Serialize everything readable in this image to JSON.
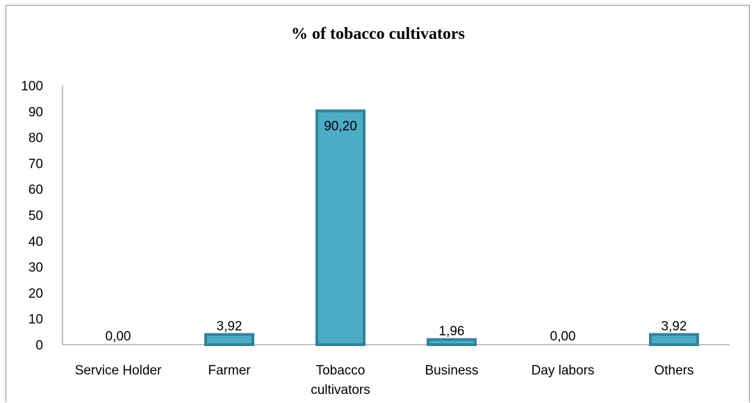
{
  "chart_data": {
    "type": "bar",
    "title": "% of tobacco cultivators",
    "categories": [
      "Service Holder",
      "Farmer",
      "Tobacco cultivators",
      "Business",
      "Day labors",
      "Others"
    ],
    "category_lines": [
      [
        "Service Holder"
      ],
      [
        "Farmer"
      ],
      [
        "Tobacco",
        "cultivators"
      ],
      [
        "Business"
      ],
      [
        "Day labors"
      ],
      [
        "Others"
      ]
    ],
    "values": [
      0.0,
      3.92,
      90.2,
      1.96,
      0.0,
      3.92
    ],
    "data_labels": [
      "0,00",
      "3,92",
      "90,20",
      "1,96",
      "0,00",
      "3,92"
    ],
    "ylim": [
      0,
      100
    ],
    "yticks": [
      0,
      10,
      20,
      30,
      40,
      50,
      60,
      70,
      80,
      90,
      100
    ],
    "grid": false,
    "legend": "none",
    "colors": {
      "bar_fill": "#4bacc6",
      "bar_border": "#31849b",
      "axis": "#868686"
    }
  }
}
